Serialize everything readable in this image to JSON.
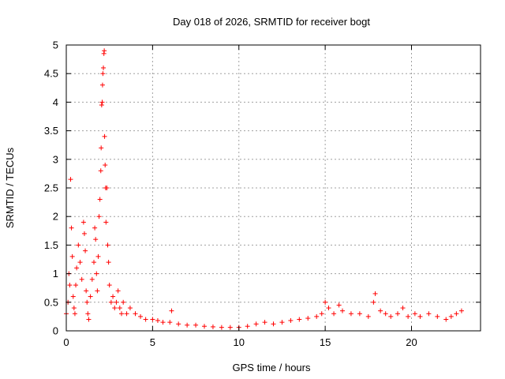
{
  "chart_data": {
    "type": "scatter",
    "title": "Day 018 of 2026, SRMTID for receiver bogt",
    "xlabel": "GPS time / hours",
    "ylabel": "SRMTID / TECUs",
    "xlim": [
      0,
      24
    ],
    "ylim": [
      0,
      5
    ],
    "xticks": [
      0,
      5,
      10,
      15,
      20
    ],
    "xtick_labels": [
      "0",
      "5",
      "10",
      "15",
      "20"
    ],
    "yticks": [
      0,
      0.5,
      1,
      1.5,
      2,
      2.5,
      3,
      3.5,
      4,
      4.5,
      5
    ],
    "ytick_labels": [
      "0",
      "0.5",
      "1",
      "1.5",
      "2",
      "2.5",
      "3",
      "3.5",
      "4",
      "4.5",
      "5"
    ],
    "grid": true,
    "marker": "+",
    "color": "#ff0000",
    "series": [
      {
        "name": "SRMTID",
        "x": [
          0.0,
          0.1,
          0.15,
          0.2,
          0.25,
          0.3,
          0.35,
          0.4,
          0.45,
          0.5,
          0.55,
          0.6,
          0.7,
          0.8,
          0.9,
          1.0,
          1.05,
          1.1,
          1.15,
          1.2,
          1.25,
          1.3,
          1.4,
          1.5,
          1.6,
          1.65,
          1.7,
          1.75,
          1.8,
          1.85,
          1.9,
          1.95,
          2.0,
          2.02,
          2.05,
          2.08,
          2.1,
          2.12,
          2.15,
          2.18,
          2.2,
          2.22,
          2.25,
          2.28,
          2.3,
          2.35,
          2.4,
          2.45,
          2.5,
          2.6,
          2.7,
          2.8,
          2.9,
          3.0,
          3.1,
          3.2,
          3.3,
          3.5,
          3.7,
          4.0,
          4.3,
          4.6,
          5.0,
          5.3,
          5.6,
          6.0,
          6.1,
          6.5,
          7.0,
          7.5,
          8.0,
          8.5,
          9.0,
          9.5,
          10.0,
          10.5,
          11.0,
          11.5,
          12.0,
          12.5,
          13.0,
          13.5,
          14.0,
          14.5,
          14.8,
          15.0,
          15.2,
          15.5,
          15.8,
          16.0,
          16.5,
          17.0,
          17.5,
          17.8,
          17.9,
          18.2,
          18.5,
          18.8,
          19.2,
          19.5,
          19.8,
          20.2,
          20.5,
          21.0,
          21.5,
          22.0,
          22.3,
          22.6,
          22.9
        ],
        "y": [
          0.3,
          0.5,
          1.0,
          0.8,
          2.65,
          1.8,
          1.3,
          0.6,
          0.4,
          0.3,
          0.8,
          1.1,
          1.5,
          1.2,
          0.9,
          1.9,
          1.7,
          1.4,
          0.7,
          0.5,
          0.3,
          0.2,
          0.6,
          0.9,
          1.2,
          1.8,
          1.6,
          1.0,
          0.7,
          1.3,
          2.0,
          2.3,
          2.8,
          3.2,
          3.95,
          4.0,
          4.3,
          4.5,
          4.6,
          4.85,
          4.9,
          3.4,
          2.9,
          2.5,
          1.9,
          2.5,
          1.5,
          1.2,
          0.8,
          0.5,
          0.6,
          0.4,
          0.5,
          0.7,
          0.4,
          0.3,
          0.5,
          0.3,
          0.4,
          0.3,
          0.25,
          0.2,
          0.2,
          0.18,
          0.15,
          0.15,
          0.35,
          0.12,
          0.1,
          0.1,
          0.08,
          0.07,
          0.06,
          0.06,
          0.06,
          0.08,
          0.12,
          0.15,
          0.12,
          0.15,
          0.18,
          0.2,
          0.22,
          0.25,
          0.3,
          0.5,
          0.4,
          0.3,
          0.45,
          0.35,
          0.3,
          0.3,
          0.25,
          0.5,
          0.65,
          0.35,
          0.3,
          0.25,
          0.3,
          0.4,
          0.25,
          0.3,
          0.25,
          0.3,
          0.25,
          0.2,
          0.25,
          0.3,
          0.35
        ]
      }
    ]
  }
}
